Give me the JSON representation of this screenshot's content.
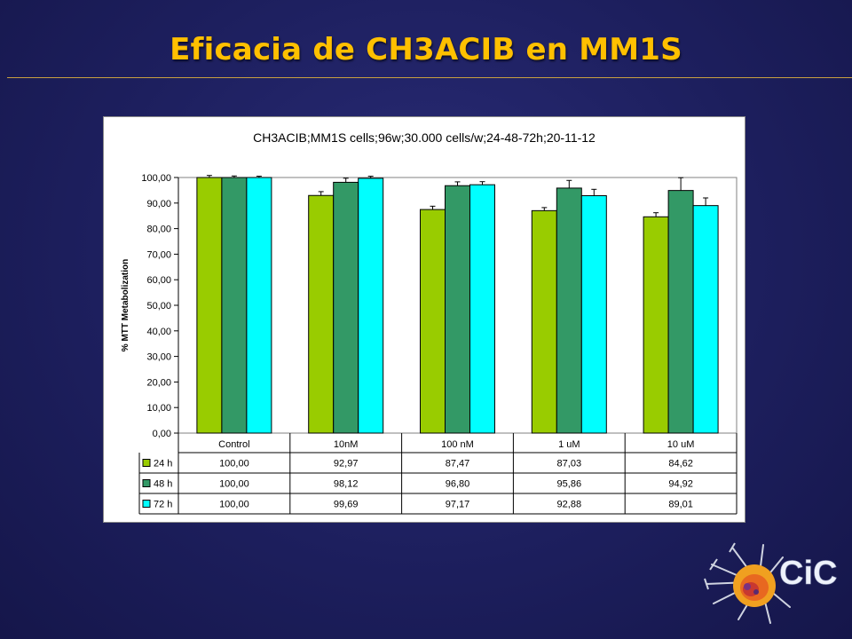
{
  "slide": {
    "title": "Eficacia de CH3ACIB en MM1S"
  },
  "logo": {
    "text": "CiC",
    "icon": "cancer-cell-logo-icon"
  },
  "colors": {
    "title": "#ffc000",
    "series_24h": "#99cc00",
    "series_48h": "#339966",
    "series_72h": "#00ffff"
  },
  "chart_data": {
    "type": "bar",
    "title": "CH3ACIB;MM1S cells;96w;30.000 cells/w;24-48-72h;20-11-12",
    "ylabel": "% MTT Metabolization",
    "xlabel": "",
    "ylim": [
      0,
      100
    ],
    "yticks": [
      "0,00",
      "10,00",
      "20,00",
      "30,00",
      "40,00",
      "50,00",
      "60,00",
      "70,00",
      "80,00",
      "90,00",
      "100,00"
    ],
    "grid": false,
    "legend": "data-table",
    "categories": [
      "Control",
      "10nM",
      "100 nM",
      "1 uM",
      "10 uM"
    ],
    "series": [
      {
        "name": "24 h",
        "color": "#99cc00",
        "values": [
          100.0,
          92.97,
          87.47,
          87.03,
          84.62
        ],
        "labels": [
          "100,00",
          "92,97",
          "87,47",
          "87,03",
          "84,62"
        ],
        "errors": [
          0.8,
          1.5,
          1.3,
          1.2,
          1.6
        ]
      },
      {
        "name": "48 h",
        "color": "#339966",
        "values": [
          100.0,
          98.12,
          96.8,
          95.86,
          94.92
        ],
        "labels": [
          "100,00",
          "98,12",
          "96,80",
          "95,86",
          "94,92"
        ],
        "errors": [
          0.6,
          1.6,
          1.5,
          3.0,
          5.0
        ]
      },
      {
        "name": "72 h",
        "color": "#00ffff",
        "values": [
          100.0,
          99.69,
          97.17,
          92.88,
          89.01
        ],
        "labels": [
          "100,00",
          "99,69",
          "97,17",
          "92,88",
          "89,01"
        ],
        "errors": [
          0.5,
          0.8,
          1.2,
          2.5,
          3.0
        ]
      }
    ]
  }
}
